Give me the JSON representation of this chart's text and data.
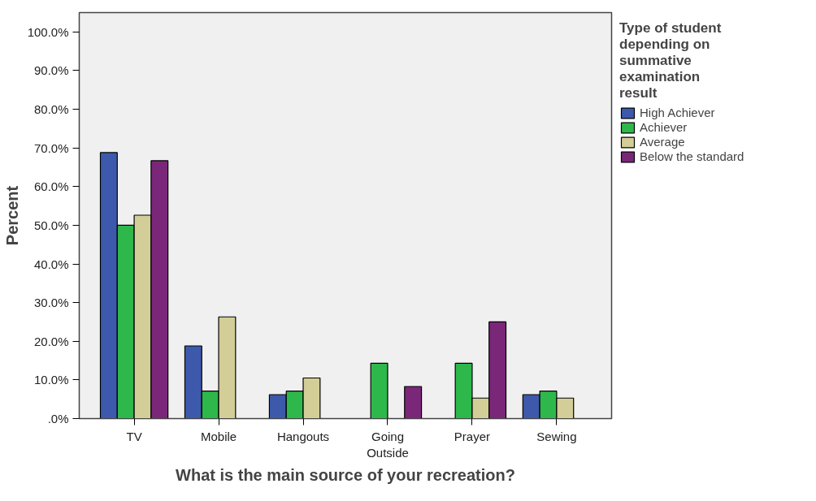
{
  "chart_data": {
    "type": "bar",
    "xlabel": "What is the main source of your recreation?",
    "ylabel": "Percent",
    "legend_title": "Type of student depending on summative examination result",
    "categories": [
      "TV",
      "Mobile",
      "Hangouts",
      "Going Outside",
      "Prayer",
      "Sewing"
    ],
    "series": [
      {
        "name": "High Achiever",
        "color": "#3d59ab",
        "values": [
          68.8,
          18.8,
          6.2,
          0,
          0,
          6.2
        ]
      },
      {
        "name": "Achiever",
        "color": "#2eb84b",
        "values": [
          50.0,
          7.1,
          7.1,
          14.3,
          14.3,
          7.1
        ]
      },
      {
        "name": "Average",
        "color": "#d3ce97",
        "values": [
          52.6,
          26.3,
          10.5,
          0,
          5.3,
          5.3
        ]
      },
      {
        "name": "Below the standard",
        "color": "#7b2779",
        "values": [
          66.7,
          0,
          0,
          8.3,
          25.0,
          0
        ]
      }
    ],
    "ylim": [
      0,
      105
    ],
    "yticks": [
      {
        "value": 0,
        "label": ".0%"
      },
      {
        "value": 10,
        "label": "10.0%"
      },
      {
        "value": 20,
        "label": "20.0%"
      },
      {
        "value": 30,
        "label": "30.0%"
      },
      {
        "value": 40,
        "label": "40.0%"
      },
      {
        "value": 50,
        "label": "50.0%"
      },
      {
        "value": 60,
        "label": "60.0%"
      },
      {
        "value": 70,
        "label": "70.0%"
      },
      {
        "value": 80,
        "label": "80.0%"
      },
      {
        "value": 90,
        "label": "90.0%"
      },
      {
        "value": 100,
        "label": "100.0%"
      }
    ],
    "grid": false,
    "legend": "right"
  }
}
